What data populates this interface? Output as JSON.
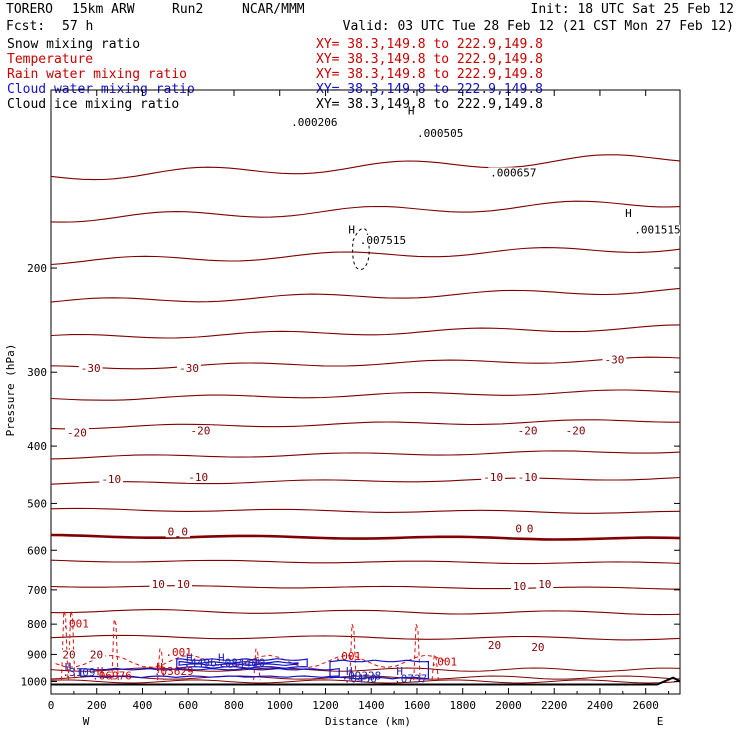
{
  "header": {
    "model": "TORERO",
    "config": "15km ARW",
    "run": "Run2",
    "org": "NCAR/MMM",
    "fcst_label": "Fcst:",
    "fcst_value": "57 h",
    "init": "Init: 18 UTC Sat 25 Feb 12",
    "valid": "Valid: 03 UTC Tue 28 Feb 12 (21 CST Mon 27 Feb 12)"
  },
  "legend": [
    {
      "name": "Snow mixing ratio",
      "color": "#000000",
      "xy": "XY=  38.3,149.8 to 222.9,149.8"
    },
    {
      "name": "Temperature",
      "color": "#cc0000",
      "xy": "XY=  38.3,149.8 to 222.9,149.8"
    },
    {
      "name": "Rain water mixing ratio",
      "color": "#cc0000",
      "xy": "XY=  38.3,149.8 to 222.9,149.8"
    },
    {
      "name": "Cloud water mixing ratio",
      "color": "#1010cc",
      "xy": "XY=  38.3,149.8 to 222.9,149.8"
    },
    {
      "name": "Cloud ice mixing ratio",
      "color": "#000000",
      "xy": "XY=  38.3,149.8 to 222.9,149.8"
    }
  ],
  "colors": {
    "temperature": "#800000",
    "rain": "#dd1111",
    "cloud_water": "#1010cc",
    "ice": "#000000",
    "label_blue": "#2222aa",
    "label_red": "#cc0000"
  },
  "chart_data": {
    "type": "line",
    "title": "Vertical cross section",
    "xlabel": "Distance (km)",
    "ylabel": "Pressure (hPa)",
    "x_range": [
      0,
      2750
    ],
    "y_range": [
      1050,
      100
    ],
    "y_scale": "log",
    "x_ticks": [
      0,
      200,
      400,
      600,
      800,
      1000,
      1200,
      1400,
      1600,
      1800,
      2000,
      2200,
      2400,
      2600
    ],
    "y_ticks": [
      200,
      300,
      400,
      500,
      600,
      700,
      800,
      900,
      1000
    ],
    "x_end_labels": {
      "left": "W",
      "right": "E"
    },
    "temperature_isotherms_C": [
      -55,
      -50,
      -45,
      -40,
      -35,
      -30,
      -25,
      -20,
      -15,
      -10,
      -5,
      0,
      5,
      10,
      15,
      20
    ],
    "temperature_isotherm_pressures_hPa": [
      140,
      165,
      195,
      228,
      262,
      295,
      333,
      372,
      418,
      463,
      512,
      568,
      625,
      690,
      760,
      840
    ],
    "temperature_labels": [
      {
        "text": "-30",
        "x_km": 130,
        "p": 300
      },
      {
        "text": "-30",
        "x_km": 560,
        "p": 300
      },
      {
        "text": "-30",
        "x_km": 2420,
        "p": 290
      },
      {
        "text": "-20",
        "x_km": 70,
        "p": 385
      },
      {
        "text": "-20",
        "x_km": 610,
        "p": 382
      },
      {
        "text": "-20",
        "x_km": 2040,
        "p": 382
      },
      {
        "text": "-20",
        "x_km": 2250,
        "p": 382
      },
      {
        "text": "-10",
        "x_km": 220,
        "p": 462
      },
      {
        "text": "-10",
        "x_km": 600,
        "p": 458
      },
      {
        "text": "-10",
        "x_km": 1890,
        "p": 458
      },
      {
        "text": "-10",
        "x_km": 2040,
        "p": 458
      },
      {
        "text": "0",
        "x_km": 510,
        "p": 566
      },
      {
        "text": "0",
        "x_km": 570,
        "p": 566
      },
      {
        "text": "0",
        "x_km": 2030,
        "p": 560
      },
      {
        "text": "0",
        "x_km": 2080,
        "p": 560
      },
      {
        "text": "10",
        "x_km": 440,
        "p": 695
      },
      {
        "text": "10",
        "x_km": 550,
        "p": 695
      },
      {
        "text": "10",
        "x_km": 2020,
        "p": 700
      },
      {
        "text": "10",
        "x_km": 2130,
        "p": 695
      },
      {
        "text": "20",
        "x_km": 50,
        "p": 915
      },
      {
        "text": "20",
        "x_km": 170,
        "p": 915
      },
      {
        "text": "20",
        "x_km": 1910,
        "p": 882
      },
      {
        "text": "20",
        "x_km": 2100,
        "p": 888
      }
    ],
    "snow_labels": [
      {
        "text": ".000206",
        "x_km": 1050,
        "p": 115
      },
      {
        "text": ".000505",
        "x_km": 1600,
        "p": 120
      },
      {
        "text": ".000657",
        "x_km": 1920,
        "p": 140
      },
      {
        "text": ".007515",
        "x_km": 1350,
        "p": 182
      },
      {
        "text": ".001515",
        "x_km": 2550,
        "p": 175
      }
    ],
    "highs": [
      {
        "text": "H",
        "x_km": 1300,
        "p": 175,
        "color": "ice"
      },
      {
        "text": "H",
        "x_km": 2510,
        "p": 164,
        "color": "ice"
      },
      {
        "text": "H",
        "x_km": 1560,
        "p": 110,
        "color": "ice"
      },
      {
        "text": "H",
        "x_km": 60,
        "p": 960,
        "color": "label_blue"
      },
      {
        "text": "H",
        "x_km": 200,
        "p": 975,
        "color": "label_red"
      },
      {
        "text": "H",
        "x_km": 460,
        "p": 960,
        "color": "label_red"
      },
      {
        "text": "H",
        "x_km": 590,
        "p": 925,
        "color": "label_blue"
      },
      {
        "text": "H",
        "x_km": 730,
        "p": 925,
        "color": "label_blue"
      },
      {
        "text": "H",
        "x_km": 1290,
        "p": 975,
        "color": "label_blue"
      },
      {
        "text": "H",
        "x_km": 1510,
        "p": 975,
        "color": "label_blue"
      }
    ],
    "rain_labels": [
      {
        "text": ".001",
        "x_km": 50,
        "p": 810
      },
      {
        "text": ".001",
        "x_km": 500,
        "p": 905
      },
      {
        "text": ".001",
        "x_km": 1240,
        "p": 920
      },
      {
        "text": ".001",
        "x_km": 1660,
        "p": 940
      },
      {
        "text": ".06976",
        "x_km": 180,
        "p": 992
      },
      {
        "text": ".03629",
        "x_km": 450,
        "p": 975
      }
    ],
    "cloud_labels": [
      {
        "text": ".3109",
        "x_km": 50,
        "p": 978
      },
      {
        "text": ".4496",
        "x_km": 580,
        "p": 943
      },
      {
        "text": ".08448",
        "x_km": 730,
        "p": 943
      },
      {
        "text": ".20",
        "x_km": 850,
        "p": 943
      },
      {
        "text": ".09328",
        "x_km": 1270,
        "p": 992
      },
      {
        "text": ".0450",
        "x_km": 1280,
        "p": 1005
      },
      {
        "text": ".0737",
        "x_km": 1500,
        "p": 1005
      }
    ]
  }
}
